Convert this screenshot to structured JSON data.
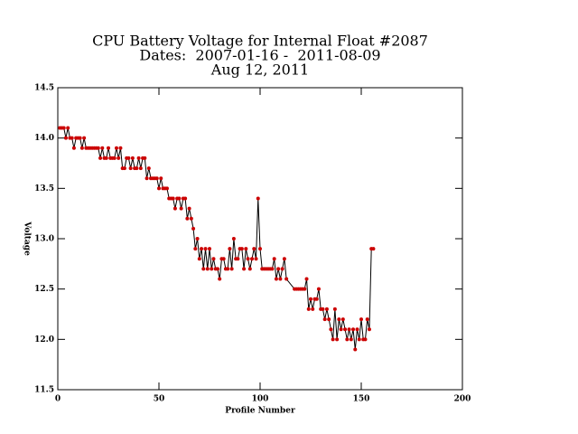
{
  "chart_data": {
    "type": "line",
    "title": "CPU Battery Voltage for Internal Float #2087",
    "subtitle": "Dates:  2007-01-16 -  2011-08-09",
    "date": "Aug 12, 2011",
    "x_label": "Profile Number",
    "y_label": "Voltage",
    "x": [
      1,
      2,
      3,
      4,
      5,
      6,
      7,
      8,
      9,
      10,
      11,
      12,
      13,
      14,
      15,
      16,
      17,
      18,
      19,
      20,
      21,
      22,
      23,
      24,
      25,
      26,
      27,
      28,
      29,
      30,
      31,
      32,
      33,
      34,
      35,
      36,
      37,
      38,
      39,
      40,
      41,
      42,
      43,
      44,
      45,
      46,
      47,
      48,
      49,
      50,
      51,
      52,
      53,
      54,
      55,
      56,
      57,
      58,
      59,
      60,
      61,
      62,
      63,
      64,
      65,
      66,
      67,
      68,
      69,
      70,
      71,
      72,
      73,
      74,
      75,
      76,
      77,
      78,
      79,
      80,
      81,
      82,
      83,
      84,
      85,
      86,
      87,
      88,
      89,
      90,
      91,
      92,
      93,
      94,
      95,
      96,
      97,
      98,
      99,
      100,
      101,
      102,
      103,
      104,
      105,
      106,
      107,
      108,
      109,
      110,
      111,
      112,
      113,
      117,
      118,
      119,
      120,
      121,
      122,
      123,
      124,
      125,
      126,
      127,
      128,
      129,
      130,
      131,
      132,
      133,
      134,
      135,
      136,
      137,
      138,
      139,
      140,
      141,
      142,
      143,
      144,
      145,
      146,
      147,
      148,
      149,
      150,
      151,
      152,
      153,
      154,
      155,
      156
    ],
    "series": [
      {
        "color": "#000000",
        "marker_color": "#cc0000",
        "values": [
          14.1,
          14.1,
          14.1,
          14.0,
          14.1,
          14.0,
          14.0,
          13.9,
          14.0,
          14.0,
          14.0,
          13.9,
          14.0,
          13.9,
          13.9,
          13.9,
          13.9,
          13.9,
          13.9,
          13.9,
          13.8,
          13.9,
          13.8,
          13.8,
          13.9,
          13.8,
          13.8,
          13.8,
          13.9,
          13.8,
          13.9,
          13.7,
          13.7,
          13.8,
          13.8,
          13.7,
          13.8,
          13.7,
          13.7,
          13.8,
          13.7,
          13.8,
          13.8,
          13.6,
          13.7,
          13.6,
          13.6,
          13.6,
          13.6,
          13.5,
          13.6,
          13.5,
          13.5,
          13.5,
          13.4,
          13.4,
          13.4,
          13.3,
          13.4,
          13.4,
          13.3,
          13.4,
          13.4,
          13.2,
          13.3,
          13.2,
          13.1,
          12.9,
          13.0,
          12.8,
          12.9,
          12.7,
          12.9,
          12.7,
          12.9,
          12.7,
          12.8,
          12.7,
          12.7,
          12.6,
          12.8,
          12.8,
          12.7,
          12.7,
          12.9,
          12.7,
          13.0,
          12.8,
          12.8,
          12.9,
          12.9,
          12.7,
          12.9,
          12.8,
          12.7,
          12.8,
          12.9,
          12.8,
          13.4,
          12.9,
          12.7,
          12.7,
          12.7,
          12.7,
          12.7,
          12.7,
          12.8,
          12.6,
          12.7,
          12.6,
          12.7,
          12.8,
          12.6,
          12.5,
          12.5,
          12.5,
          12.5,
          12.5,
          12.5,
          12.6,
          12.3,
          12.4,
          12.3,
          12.4,
          12.4,
          12.5,
          12.3,
          12.3,
          12.2,
          12.3,
          12.2,
          12.1,
          12.0,
          12.3,
          12.0,
          12.2,
          12.1,
          12.2,
          12.1,
          12.0,
          12.1,
          12.0,
          12.1,
          11.9,
          12.1,
          12.0,
          12.2,
          12.0,
          12.0,
          12.2,
          12.1,
          12.9,
          12.9
        ]
      }
    ],
    "xlim": [
      0,
      200
    ],
    "xticks": [
      0,
      50,
      100,
      150,
      200
    ],
    "ylim": [
      11.5,
      14.5
    ],
    "yticks": [
      11.5,
      {
        "value": 12,
        "label": "12.0"
      },
      12.5,
      {
        "value": 13,
        "label": "13.0"
      },
      13.5,
      {
        "value": 14,
        "label": "14.0"
      },
      14.5
    ]
  }
}
